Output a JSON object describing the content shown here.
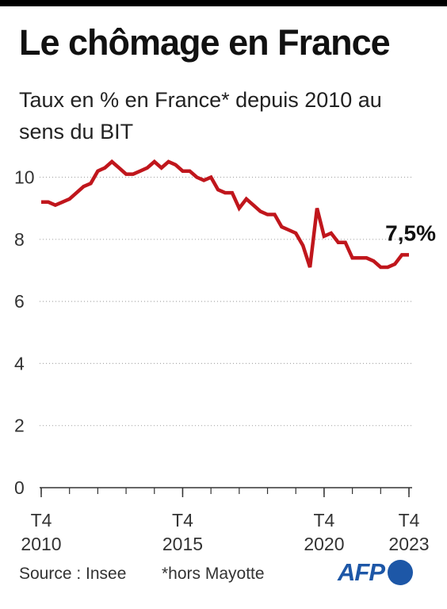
{
  "title": "Le chômage en France",
  "subtitle": "Taux en % en France* depuis 2010 au sens du BIT",
  "source": "Source : Insee",
  "note": "*hors Mayotte",
  "logo": "AFP",
  "colors": {
    "series": "#c0161c",
    "grid": "#aaaaaa",
    "text": "#1a1a1a",
    "logo": "#1d57a7"
  },
  "chart_data": {
    "type": "line",
    "title": "Le chômage en France",
    "ylabel": "",
    "xlabel": "",
    "ylim": [
      0,
      10.6
    ],
    "yticks": [
      0,
      2,
      4,
      6,
      8,
      10
    ],
    "grid": "dotted horizontal",
    "xticks": [
      {
        "x": "2010 T4",
        "label_top": "T4",
        "label_bottom": "2010"
      },
      {
        "x": "2015 T4",
        "label_top": "T4",
        "label_bottom": "2015"
      },
      {
        "x": "2020 T4",
        "label_top": "T4",
        "label_bottom": "2020"
      },
      {
        "x": "2023 T4",
        "label_top": "T4",
        "label_bottom": "2023"
      }
    ],
    "x": [
      "2010 T4",
      "2011 T1",
      "2011 T2",
      "2011 T3",
      "2011 T4",
      "2012 T1",
      "2012 T2",
      "2012 T3",
      "2012 T4",
      "2013 T1",
      "2013 T2",
      "2013 T3",
      "2013 T4",
      "2014 T1",
      "2014 T2",
      "2014 T3",
      "2014 T4",
      "2015 T1",
      "2015 T2",
      "2015 T3",
      "2015 T4",
      "2016 T1",
      "2016 T2",
      "2016 T3",
      "2016 T4",
      "2017 T1",
      "2017 T2",
      "2017 T3",
      "2017 T4",
      "2018 T1",
      "2018 T2",
      "2018 T3",
      "2018 T4",
      "2019 T1",
      "2019 T2",
      "2019 T3",
      "2019 T4",
      "2020 T1",
      "2020 T2",
      "2020 T3",
      "2020 T4",
      "2021 T1",
      "2021 T2",
      "2021 T3",
      "2021 T4",
      "2022 T1",
      "2022 T2",
      "2022 T3",
      "2022 T4",
      "2023 T1",
      "2023 T2",
      "2023 T3",
      "2023 T4"
    ],
    "series": [
      {
        "values": [
          9.2,
          9.2,
          9.1,
          9.2,
          9.3,
          9.5,
          9.7,
          9.8,
          10.2,
          10.3,
          10.5,
          10.3,
          10.1,
          10.1,
          10.2,
          10.3,
          10.5,
          10.3,
          10.5,
          10.4,
          10.2,
          10.2,
          10.0,
          9.9,
          10.0,
          9.6,
          9.5,
          9.5,
          9.0,
          9.3,
          9.1,
          8.9,
          8.8,
          8.8,
          8.4,
          8.3,
          8.2,
          7.8,
          7.1,
          9.0,
          8.1,
          8.2,
          7.9,
          7.9,
          7.4,
          7.4,
          7.4,
          7.3,
          7.1,
          7.1,
          7.2,
          7.5,
          7.5
        ]
      }
    ],
    "annotation": {
      "x": "2023 T4",
      "value": 7.5,
      "text": "7,5%"
    }
  }
}
